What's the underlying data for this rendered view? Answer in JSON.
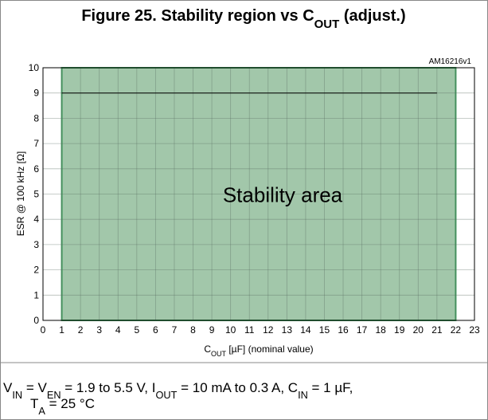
{
  "chart_data": {
    "type": "area",
    "title": [
      "Figure 25. Stability region vs C",
      "OUT",
      " (adjust.)"
    ],
    "code": "AM16216v1",
    "xlabel": [
      "C",
      "OUT",
      " [µF] (nominal value)"
    ],
    "ylabel": "ESR @ 100 kHz [Ω]",
    "annotation": "Stability area",
    "note": [
      [
        "V",
        "IN",
        " = V",
        "EN",
        " = 1.9 to 5.5 V, I",
        "OUT",
        " = 10 mA to 0.3 A, C",
        "IN",
        " = 1 µF,"
      ],
      [
        "T",
        "A",
        " = 25 °C"
      ]
    ],
    "series": [
      {
        "x": [
          1,
          22
        ],
        "values": [
          10,
          10
        ],
        "color": "#a2c7aa",
        "fill": true
      },
      {
        "x": [
          1,
          21
        ],
        "values": [
          9,
          9
        ],
        "color": "#000000",
        "fill": false
      }
    ],
    "xlim": [
      0,
      23
    ],
    "xticks": [
      0,
      1,
      2,
      3,
      4,
      5,
      6,
      7,
      8,
      9,
      10,
      11,
      12,
      13,
      14,
      15,
      16,
      17,
      18,
      19,
      20,
      21,
      22,
      23
    ],
    "ylim": [
      0,
      10
    ],
    "yticks": [
      0,
      1,
      2,
      3,
      4,
      5,
      6,
      7,
      8,
      9,
      10
    ],
    "grid": true
  }
}
